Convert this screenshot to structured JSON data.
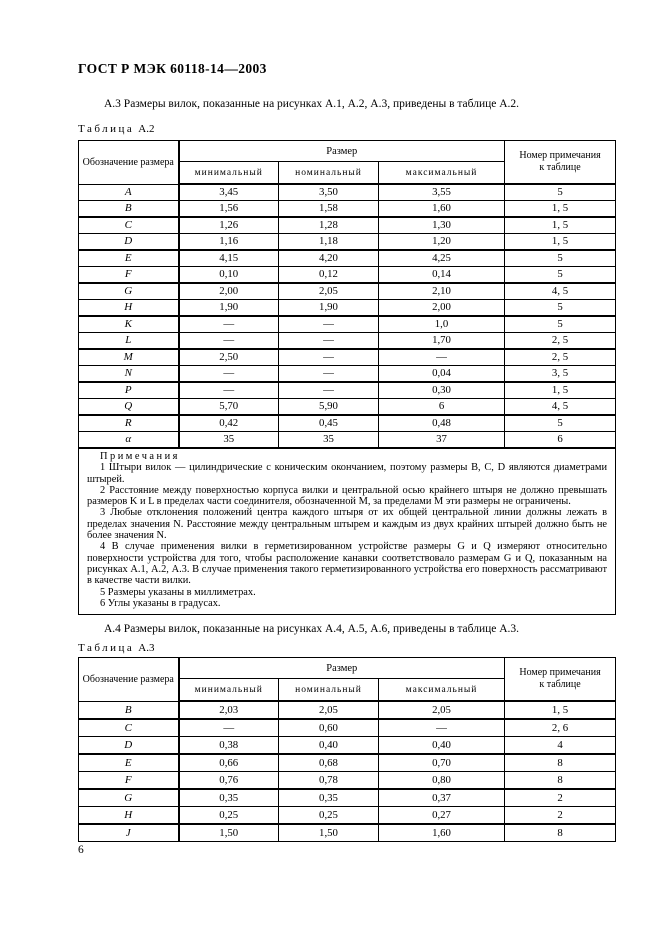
{
  "page": {
    "header_title": "ГОСТ Р МЭК 60118-14—2003",
    "page_number": "6"
  },
  "sections": {
    "a3_text": "А.3  Размеры вилок, показанные на рисунках А.1, А.2, А.3, приведены в таблице А.2.",
    "a4_text": "А.4  Размеры вилок, показанные на рисунках А.4, А.5, А.6, приведены в таблице А.3."
  },
  "table_headers": {
    "designation": "Обозначение размера",
    "size": "Размер",
    "min": "минимальный",
    "nom": "номинальный",
    "max": "максимальный",
    "note_line1": "Номер примечания",
    "note_line2": "к таблице"
  },
  "table_a2": {
    "label_word": "Таблица",
    "label_num": "А.2",
    "rows": [
      {
        "name": "A",
        "min": "3,45",
        "nom": "3,50",
        "max": "3,55",
        "note": "5"
      },
      {
        "name": "B",
        "min": "1,56",
        "nom": "1,58",
        "max": "1,60",
        "note": "1, 5"
      },
      {
        "name": "C",
        "min": "1,26",
        "nom": "1,28",
        "max": "1,30",
        "note": "1, 5"
      },
      {
        "name": "D",
        "min": "1,16",
        "nom": "1,18",
        "max": "1,20",
        "note": "1, 5"
      },
      {
        "name": "E",
        "min": "4,15",
        "nom": "4,20",
        "max": "4,25",
        "note": "5"
      },
      {
        "name": "F",
        "min": "0,10",
        "nom": "0,12",
        "max": "0,14",
        "note": "5"
      },
      {
        "name": "G",
        "min": "2,00",
        "nom": "2,05",
        "max": "2,10",
        "note": "4, 5"
      },
      {
        "name": "H",
        "min": "1,90",
        "nom": "1,90",
        "max": "2,00",
        "note": "5"
      },
      {
        "name": "K",
        "min": "—",
        "nom": "—",
        "max": "1,0",
        "note": "5"
      },
      {
        "name": "L",
        "min": "—",
        "nom": "—",
        "max": "1,70",
        "note": "2, 5"
      },
      {
        "name": "M",
        "min": "2,50",
        "nom": "—",
        "max": "—",
        "note": "2, 5"
      },
      {
        "name": "N",
        "min": "—",
        "nom": "—",
        "max": "0,04",
        "note": "3, 5"
      },
      {
        "name": "P",
        "min": "—",
        "nom": "—",
        "max": "0,30",
        "note": "1, 5"
      },
      {
        "name": "Q",
        "min": "5,70",
        "nom": "5,90",
        "max": "6",
        "note": "4, 5"
      },
      {
        "name": "R",
        "min": "0,42",
        "nom": "0,45",
        "max": "0,48",
        "note": "5"
      },
      {
        "name": "α",
        "min": "35",
        "nom": "35",
        "max": "37",
        "note": "6"
      }
    ],
    "notes_title": "Примечания",
    "notes": [
      "1 Штыри вилок — цилиндрические с коническим окончанием, поэтому размеры  B,  C,  D  являются диаметрами штырей.",
      "2 Расстояние между поверхностью корпуса вилки и центральной осью крайнего штыря не должно превышать размеров  K и L  в пределах части соединителя, обозначенной  M,  за пределами  M  эти размеры не ограничены.",
      "3 Любые отклонения положений центра каждого штыря от их общей центральной линии должны лежать в пределах значения  N.  Расстояние между центральным штырем и каждым из двух крайних штырей должно быть не более значения  N.",
      "4 В случае применения вилки в герметизированном устройстве размеры  G  и  Q  измеряют относительно поверхности устройства для того, чтобы расположение канавки соответствовало размерам  G  и  Q,  показанным на рисунках А.1, А.2, А.3. В случае применения такого герметизированного устройства его поверхность рассматривают в качестве части вилки.",
      "5 Размеры указаны в миллиметрах.",
      "6 Углы указаны в градусах."
    ]
  },
  "table_a3": {
    "label_word": "Таблица",
    "label_num": "А.3",
    "rows": [
      {
        "name": "B",
        "min": "2,03",
        "nom": "2,05",
        "max": "2,05",
        "note": "1, 5"
      },
      {
        "name": "C",
        "min": "—",
        "nom": "0,60",
        "max": "—",
        "note": "2, 6"
      },
      {
        "name": "D",
        "min": "0,38",
        "nom": "0,40",
        "max": "0,40",
        "note": "4"
      },
      {
        "name": "E",
        "min": "0,66",
        "nom": "0,68",
        "max": "0,70",
        "note": "8"
      },
      {
        "name": "F",
        "min": "0,76",
        "nom": "0,78",
        "max": "0,80",
        "note": "8"
      },
      {
        "name": "G",
        "min": "0,35",
        "nom": "0,35",
        "max": "0,37",
        "note": "2"
      },
      {
        "name": "H",
        "min": "0,25",
        "nom": "0,25",
        "max": "0,27",
        "note": "2"
      },
      {
        "name": "J",
        "min": "1,50",
        "nom": "1,50",
        "max": "1,60",
        "note": "8"
      }
    ]
  }
}
